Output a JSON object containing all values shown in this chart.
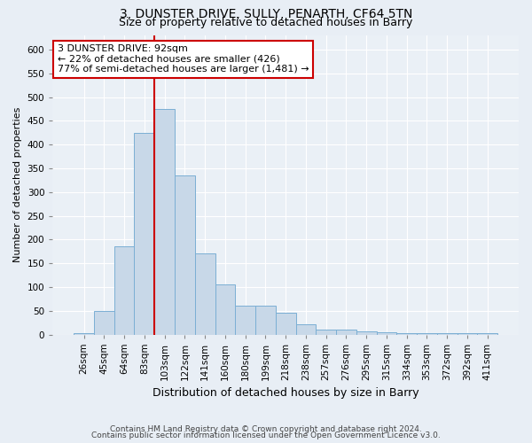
{
  "title": "3, DUNSTER DRIVE, SULLY, PENARTH, CF64 5TN",
  "subtitle": "Size of property relative to detached houses in Barry",
  "xlabel": "Distribution of detached houses by size in Barry",
  "ylabel": "Number of detached properties",
  "footnote1": "Contains HM Land Registry data © Crown copyright and database right 2024.",
  "footnote2": "Contains public sector information licensed under the Open Government Licence v3.0.",
  "categories": [
    "26sqm",
    "45sqm",
    "64sqm",
    "83sqm",
    "103sqm",
    "122sqm",
    "141sqm",
    "160sqm",
    "180sqm",
    "199sqm",
    "218sqm",
    "238sqm",
    "257sqm",
    "276sqm",
    "295sqm",
    "315sqm",
    "334sqm",
    "353sqm",
    "372sqm",
    "392sqm",
    "411sqm"
  ],
  "values": [
    3,
    50,
    185,
    425,
    475,
    335,
    170,
    105,
    60,
    60,
    45,
    22,
    10,
    10,
    7,
    5,
    3,
    2,
    2,
    2,
    2
  ],
  "bar_color": "#c8d8e8",
  "bar_edge_color": "#7bafd4",
  "red_line_index": 3.5,
  "red_line_label": "3 DUNSTER DRIVE: 92sqm",
  "annotation_line1": "← 22% of detached houses are smaller (426)",
  "annotation_line2": "77% of semi-detached houses are larger (1,481) →",
  "annotation_box_color": "#ffffff",
  "annotation_box_edge": "#cc0000",
  "red_line_color": "#cc0000",
  "ylim": [
    0,
    630
  ],
  "yticks": [
    0,
    50,
    100,
    150,
    200,
    250,
    300,
    350,
    400,
    450,
    500,
    550,
    600
  ],
  "bg_color": "#e8eef5",
  "plot_bg_color": "#eaf0f6",
  "title_fontsize": 10,
  "subtitle_fontsize": 9,
  "footnote_fontsize": 6.5,
  "ylabel_fontsize": 8,
  "xlabel_fontsize": 9,
  "tick_fontsize": 7.5,
  "annot_fontsize": 8
}
